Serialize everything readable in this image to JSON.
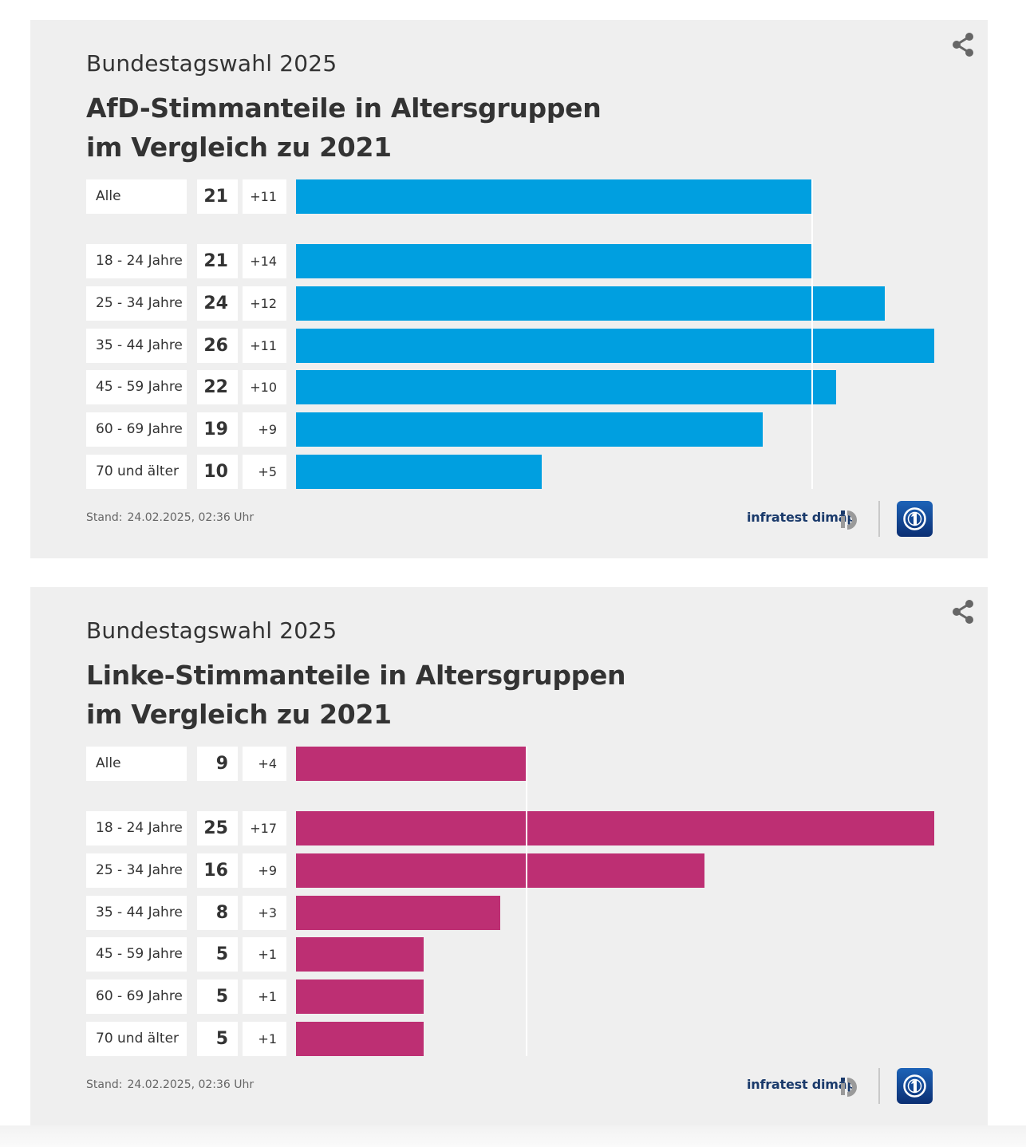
{
  "colors": {
    "panel_bg": "#efefef",
    "afd": "#009fe0",
    "linke": "#bd2f73",
    "text": "#333333"
  },
  "icons": {
    "share": "share-icon",
    "brand": "infratest-dimap-logo",
    "tv": "tagesschau-logo-icon"
  },
  "chart_data": [
    {
      "type": "bar",
      "overline": "Bundestagswahl 2025",
      "title_line1": "AfD-Stimmanteile in Altersgruppen",
      "title_line2": "im Vergleich zu 2021",
      "categories": [
        "Alle",
        "18 - 24 Jahre",
        "25 - 34 Jahre",
        "35 - 44 Jahre",
        "45 - 59 Jahre",
        "60 - 69 Jahre",
        "70 und älter"
      ],
      "values": [
        21,
        21,
        24,
        26,
        22,
        19,
        10
      ],
      "changes": [
        "+11",
        "+14",
        "+12",
        "+11",
        "+10",
        "+9",
        "+5"
      ],
      "value_labels": [
        "21",
        "21",
        "24",
        "26",
        "22",
        "19",
        "10"
      ],
      "reference_value": 21,
      "xlim": [
        0,
        26
      ],
      "color": "#009fe0",
      "stand": "Stand:",
      "stand_date": "24.02.2025, 02:36 Uhr",
      "source": "infratest dimap"
    },
    {
      "type": "bar",
      "overline": "Bundestagswahl 2025",
      "title_line1": "Linke-Stimmanteile in Altersgruppen",
      "title_line2": "im Vergleich zu 2021",
      "categories": [
        "Alle",
        "18 - 24 Jahre",
        "25 - 34 Jahre",
        "35 - 44 Jahre",
        "45 - 59 Jahre",
        "60 - 69 Jahre",
        "70 und älter"
      ],
      "values": [
        9,
        25,
        16,
        8,
        5,
        5,
        5
      ],
      "changes": [
        "+4",
        "+17",
        "+9",
        "+3",
        "+1",
        "+1",
        "+1"
      ],
      "value_labels": [
        "9",
        "25",
        "16",
        "8",
        "5",
        "5",
        "5"
      ],
      "reference_value": 9,
      "xlim": [
        0,
        25
      ],
      "color": "#bd2f73",
      "stand": "Stand:",
      "stand_date": "24.02.2025, 02:36 Uhr",
      "source": "infratest dimap"
    }
  ]
}
